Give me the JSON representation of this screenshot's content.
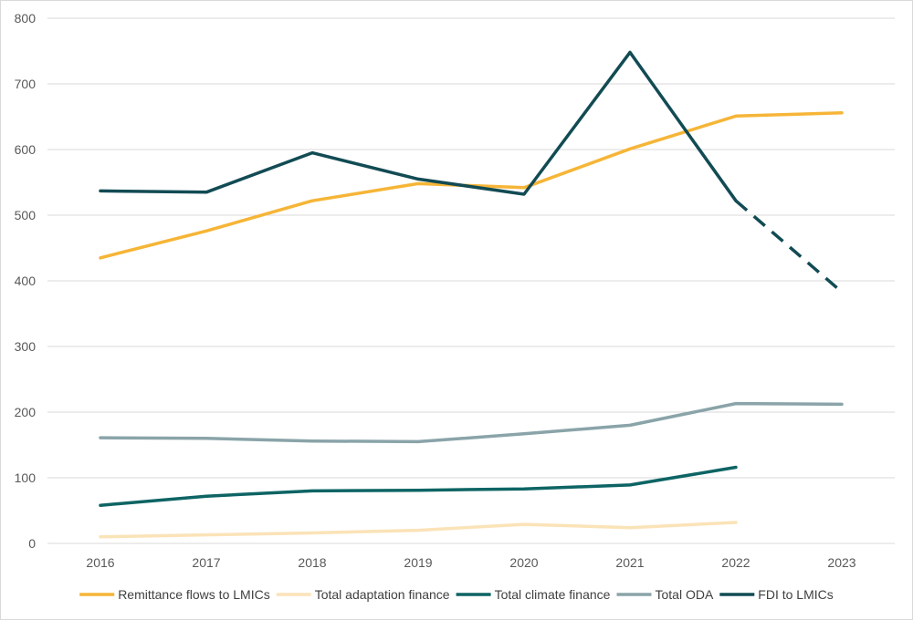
{
  "chart_data": {
    "type": "line",
    "title": "",
    "xlabel": "",
    "ylabel": "",
    "categories": [
      "2016",
      "2017",
      "2018",
      "2019",
      "2020",
      "2021",
      "2022",
      "2023"
    ],
    "ylim": [
      0,
      800
    ],
    "yticks": [
      0,
      100,
      200,
      300,
      400,
      500,
      600,
      700,
      800
    ],
    "grid": "horizontal",
    "legend_position": "bottom",
    "series": [
      {
        "name": "Remittance flows to LMICs",
        "color": "#F6B537",
        "values": [
          435,
          476,
          522,
          548,
          542,
          601,
          651,
          656
        ]
      },
      {
        "name": "Total adaptation finance",
        "color": "#FBE3B8",
        "values": [
          10,
          13,
          16,
          20,
          29,
          24,
          32,
          null
        ]
      },
      {
        "name": "Total climate finance",
        "color": "#0E6464",
        "values": [
          58,
          72,
          80,
          81,
          83,
          89,
          116,
          null
        ]
      },
      {
        "name": "Total ODA",
        "color": "#8AA4A9",
        "values": [
          161,
          160,
          156,
          155,
          167,
          180,
          213,
          212
        ]
      },
      {
        "name": "FDI to LMICs",
        "color": "#124B54",
        "values": [
          537,
          535,
          595,
          555,
          532,
          748,
          522,
          383
        ],
        "dashed_from_index": 6
      }
    ]
  }
}
